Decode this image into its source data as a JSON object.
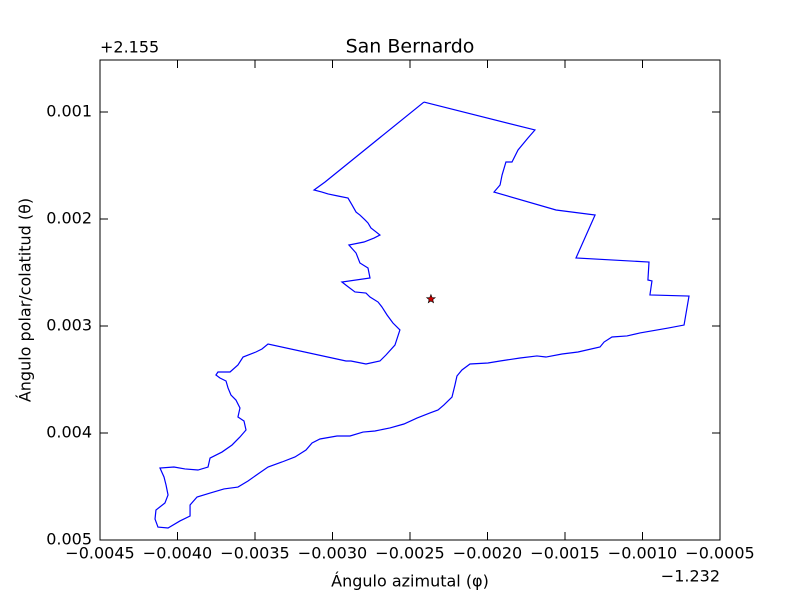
{
  "chart_data": {
    "type": "line",
    "title": "San Bernardo",
    "xlabel": "Ángulo azimutal (φ)",
    "ylabel": "Ángulo polar/colatitud (θ)",
    "x_offset_label": "−1.232",
    "y_offset_label": "+2.155",
    "color": "#0000ff",
    "x": [
      -0.00241,
      -0.001694,
      -0.001739,
      -0.001803,
      -0.001842,
      -0.001881,
      -0.001906,
      -0.001919,
      -0.001958,
      -0.001558,
      -0.001306,
      -0.001429,
      -0.000958,
      -0.000965,
      -0.000939,
      -0.000952,
      -0.0007,
      -0.000732,
      -0.000835,
      -0.001016,
      -0.0011,
      -0.001197,
      -0.001248,
      -0.001274,
      -0.001416,
      -0.001519,
      -0.001623,
      -0.001681,
      -0.00179,
      -0.001919,
      -0.001997,
      -0.002113,
      -0.002165,
      -0.002197,
      -0.00221,
      -0.002229,
      -0.002281,
      -0.002319,
      -0.002371,
      -0.002455,
      -0.002539,
      -0.002629,
      -0.002726,
      -0.002803,
      -0.002887,
      -0.002971,
      -0.003081,
      -0.003132,
      -0.003171,
      -0.003242,
      -0.003326,
      -0.003416,
      -0.003481,
      -0.003545,
      -0.00361,
      -0.0037,
      -0.00379,
      -0.003874,
      -0.003919,
      -0.003919,
      -0.003984,
      -0.004061,
      -0.004126,
      -0.004145,
      -0.004139,
      -0.004081,
      -0.004061,
      -0.004074,
      -0.004087,
      -0.004113,
      -0.004023,
      -0.003952,
      -0.003868,
      -0.003803,
      -0.00379,
      -0.003713,
      -0.003648,
      -0.003597,
      -0.003558,
      -0.003571,
      -0.00361,
      -0.003597,
      -0.003623,
      -0.003655,
      -0.003674,
      -0.003687,
      -0.003726,
      -0.003752,
      -0.003739,
      -0.003661,
      -0.00361,
      -0.003577,
      -0.003494,
      -0.003455,
      -0.003416,
      -0.002913,
      -0.002881,
      -0.002784,
      -0.002694,
      -0.002655,
      -0.002597,
      -0.002565,
      -0.00261,
      -0.002648,
      -0.002681,
      -0.002706,
      -0.002758,
      -0.002784,
      -0.002855,
      -0.002906,
      -0.002939,
      -0.002758,
      -0.002771,
      -0.002823,
      -0.002848,
      -0.002894,
      -0.002797,
      -0.002732,
      -0.002694,
      -0.002719,
      -0.002752,
      -0.002771,
      -0.00279,
      -0.002823,
      -0.002848,
      -0.002874,
      -0.0029,
      -0.002965,
      -0.003029,
      -0.003068,
      -0.003119,
      -0.003048,
      -0.00241
    ],
    "values": [
      0.000907,
      0.001168,
      0.001243,
      0.001355,
      0.001467,
      0.001467,
      0.001589,
      0.001682,
      0.001748,
      0.001916,
      0.001963,
      0.002364,
      0.002402,
      0.00257,
      0.002579,
      0.00271,
      0.00272,
      0.002991,
      0.003019,
      0.003065,
      0.003093,
      0.003103,
      0.00315,
      0.003196,
      0.003243,
      0.003262,
      0.00329,
      0.00328,
      0.003299,
      0.003327,
      0.003346,
      0.003355,
      0.003411,
      0.003467,
      0.003551,
      0.003664,
      0.003738,
      0.003785,
      0.003813,
      0.00386,
      0.003916,
      0.003953,
      0.003981,
      0.003991,
      0.004028,
      0.004028,
      0.004056,
      0.004093,
      0.004159,
      0.004224,
      0.004271,
      0.004318,
      0.004383,
      0.004449,
      0.004505,
      0.004523,
      0.004561,
      0.004598,
      0.004673,
      0.004776,
      0.004822,
      0.004888,
      0.004879,
      0.004804,
      0.00472,
      0.004654,
      0.004579,
      0.004486,
      0.004411,
      0.004327,
      0.004318,
      0.004336,
      0.004346,
      0.004318,
      0.004234,
      0.004178,
      0.004112,
      0.004037,
      0.003972,
      0.003888,
      0.00385,
      0.003766,
      0.003692,
      0.003645,
      0.003579,
      0.003514,
      0.003486,
      0.003458,
      0.00343,
      0.00343,
      0.003364,
      0.00329,
      0.003243,
      0.003215,
      0.003168,
      0.003327,
      0.003327,
      0.003355,
      0.003327,
      0.003271,
      0.003178,
      0.003037,
      0.002972,
      0.002897,
      0.002822,
      0.002776,
      0.002729,
      0.002692,
      0.002682,
      0.002626,
      0.002589,
      0.002551,
      0.002458,
      0.002411,
      0.002318,
      0.002243,
      0.002215,
      0.002178,
      0.00215,
      0.002121,
      0.002084,
      0.002037,
      0.002009,
      0.001963,
      0.001935,
      0.001869,
      0.001804,
      0.001785,
      0.001766,
      0.001748,
      0.001729,
      0.001654,
      0.000907
    ],
    "point": {
      "x": -0.002365,
      "y": 0.002748,
      "color": "#cc0000"
    },
    "xlim": [
      -0.0045,
      -0.0005
    ],
    "ylim": [
      0.005,
      0.000514
    ],
    "xticks": [
      {
        "value": -0.0045,
        "label": "−0.0045"
      },
      {
        "value": -0.004,
        "label": "−0.0040"
      },
      {
        "value": -0.0035,
        "label": "−0.0035"
      },
      {
        "value": -0.003,
        "label": "−0.0030"
      },
      {
        "value": -0.0025,
        "label": "−0.0025"
      },
      {
        "value": -0.002,
        "label": "−0.0020"
      },
      {
        "value": -0.0015,
        "label": "−0.0015"
      },
      {
        "value": -0.001,
        "label": "−0.0010"
      },
      {
        "value": -0.0005,
        "label": "−0.0005"
      }
    ],
    "yticks": [
      0.001,
      0.002,
      0.003,
      0.004,
      0.005
    ],
    "grid": false
  }
}
